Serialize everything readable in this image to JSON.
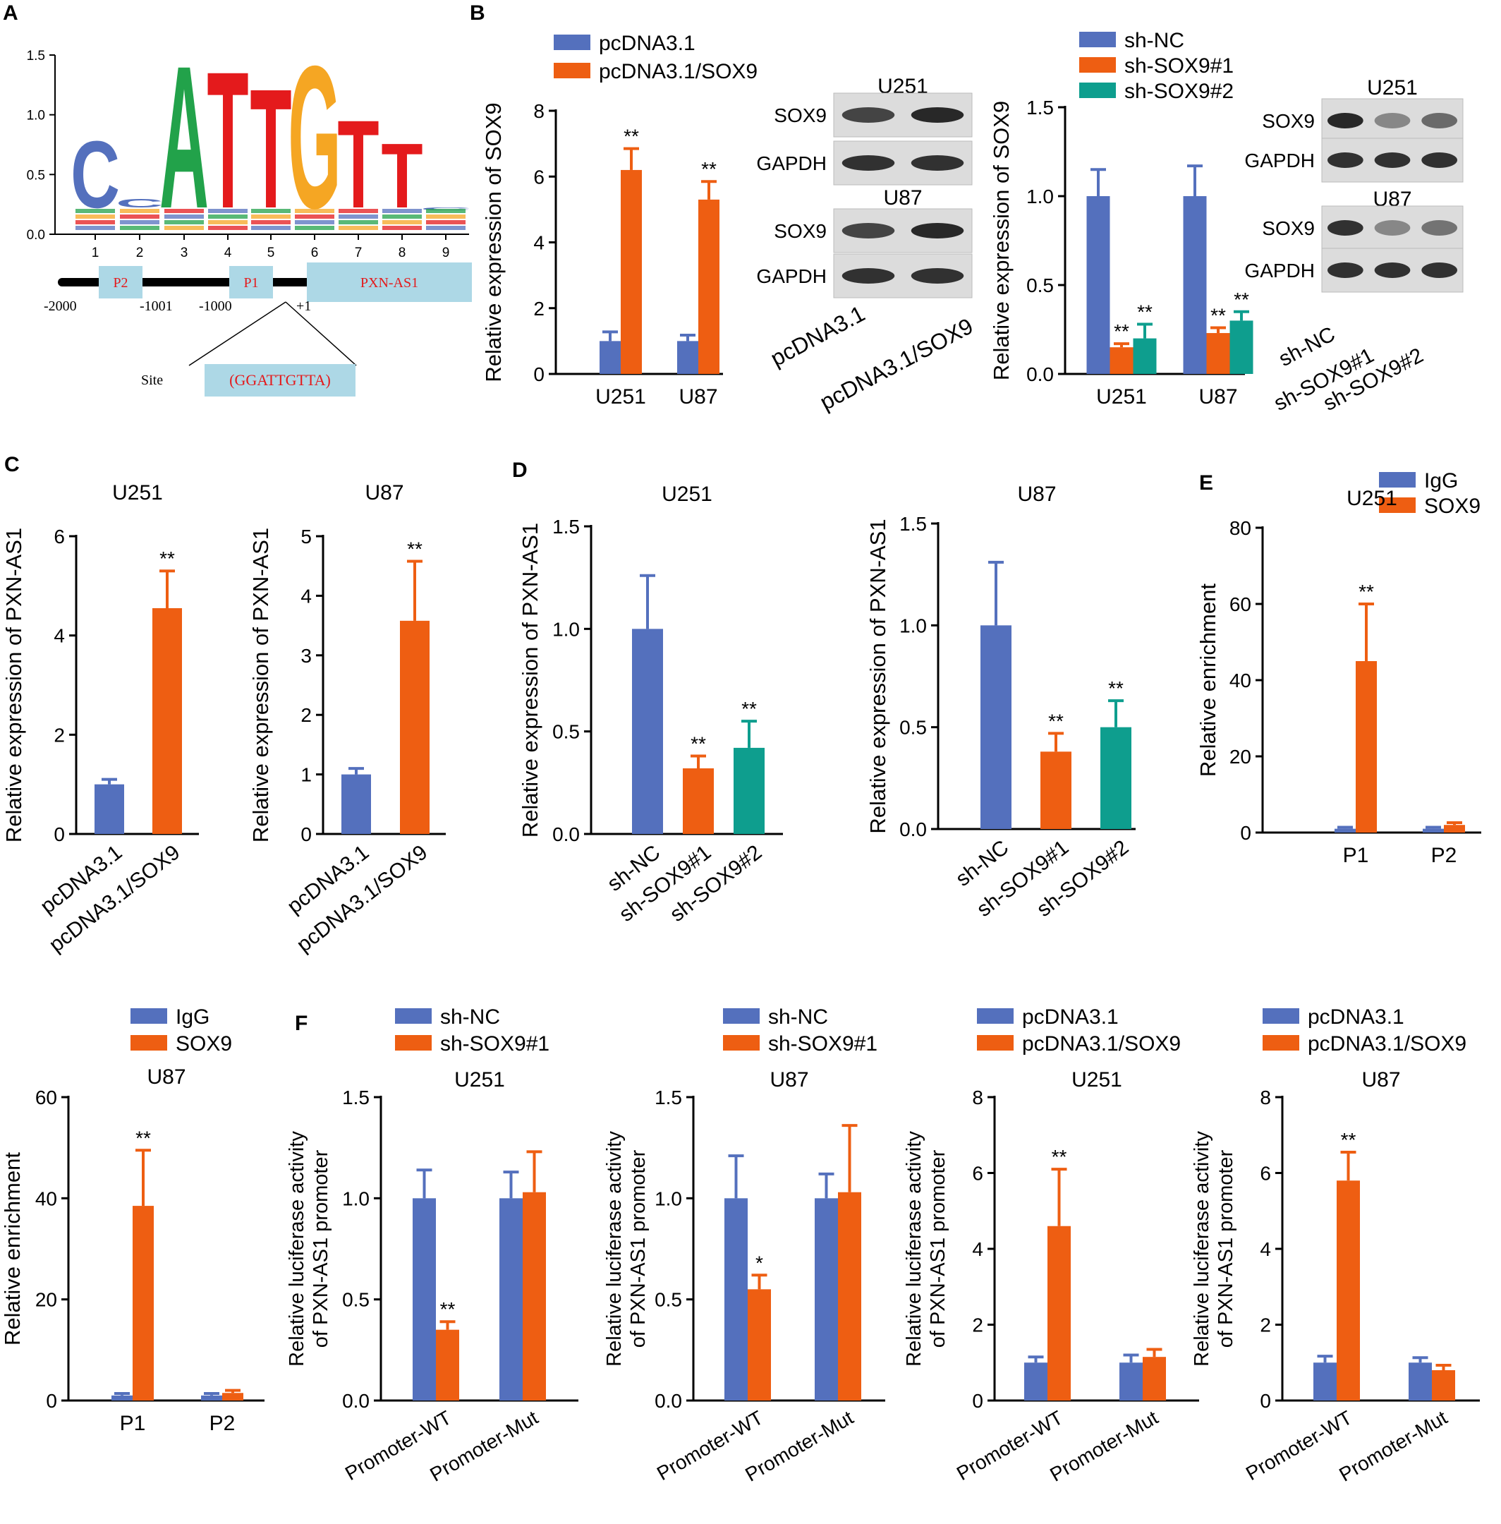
{
  "colors": {
    "blue": "#5470BD",
    "orange": "#EE5E12",
    "teal": "#0E9E8E",
    "red": "#E41A1C",
    "green": "#22A24A",
    "yellow": "#F5A623",
    "boxFill": "#ADD8E6",
    "boxText": "#E41A1C"
  },
  "panel_labels": {
    "A": "A",
    "B": "B",
    "C": "C",
    "D": "D",
    "E": "E",
    "F": "F"
  },
  "legends": {
    "pcDNA": [
      "pcDNA3.1",
      "pcDNA3.1/SOX9"
    ],
    "sh3": [
      "sh-NC",
      "sh-SOX9#1",
      "sh-SOX9#2"
    ],
    "ip": [
      "IgG",
      "SOX9"
    ],
    "sh2": [
      "sh-NC",
      "sh-SOX9#1"
    ]
  },
  "logo": {
    "yticks": [
      "0.0",
      "0.5",
      "1.0",
      "1.5"
    ],
    "xticks": [
      "1",
      "2",
      "3",
      "4",
      "5",
      "6",
      "7",
      "8",
      "9"
    ],
    "letters": [
      "C",
      "C",
      "A",
      "T",
      "T",
      "G",
      "T",
      "T",
      "C"
    ],
    "boxes": [
      "P2",
      "P1",
      "PXN-AS1"
    ],
    "coords": [
      "-2000",
      "-1001",
      "-1000",
      "+1"
    ],
    "site_label": "Site",
    "site_seq": "(GGATTGTTA)"
  },
  "blots": {
    "b1": {
      "top_cell": "U251",
      "bottom_cell": "U87",
      "rows": [
        "SOX9",
        "GAPDH",
        "SOX9",
        "GAPDH"
      ],
      "lanes": [
        "pcDNA3.1",
        "pcDNA3.1/SOX9"
      ]
    },
    "b2": {
      "top_cell": "U251",
      "bottom_cell": "U87",
      "rows": [
        "SOX9",
        "GAPDH",
        "SOX9",
        "GAPDH"
      ],
      "lanes": [
        "sh-NC",
        "sh-SOX9#1",
        "sh-SOX9#2"
      ]
    }
  },
  "chart_data": [
    {
      "id": "B1",
      "type": "bar",
      "title": "",
      "ylabel": "Relative expression of SOX9",
      "ylim": [
        0,
        8
      ],
      "yticks": [
        "0",
        "2",
        "4",
        "6",
        "8"
      ],
      "categories": [
        "U251",
        "U87"
      ],
      "legend": "pcDNA",
      "series": [
        {
          "name": "pcDNA3.1",
          "values": [
            1.0,
            1.0
          ],
          "err": [
            0.28,
            0.18
          ]
        },
        {
          "name": "pcDNA3.1/SOX9",
          "values": [
            6.2,
            5.3
          ],
          "err": [
            0.65,
            0.55
          ]
        }
      ],
      "annotations": [
        {
          "cat": 0,
          "series": 1,
          "text": "**"
        },
        {
          "cat": 1,
          "series": 1,
          "text": "**"
        }
      ]
    },
    {
      "id": "B2",
      "type": "bar",
      "title": "",
      "ylabel": "Relative expression of SOX9",
      "ylim": [
        0,
        1.5
      ],
      "yticks": [
        "0.0",
        "0.5",
        "1.0",
        "1.5"
      ],
      "categories": [
        "U251",
        "U87"
      ],
      "legend": "sh3",
      "series": [
        {
          "name": "sh-NC",
          "values": [
            1.0,
            1.0
          ],
          "err": [
            0.15,
            0.17
          ]
        },
        {
          "name": "sh-SOX9#1",
          "values": [
            0.15,
            0.23
          ],
          "err": [
            0.02,
            0.03
          ]
        },
        {
          "name": "sh-SOX9#2",
          "values": [
            0.2,
            0.3
          ],
          "err": [
            0.08,
            0.05
          ]
        }
      ],
      "annotations": [
        {
          "cat": 0,
          "series": 1,
          "text": "**"
        },
        {
          "cat": 0,
          "series": 2,
          "text": "**"
        },
        {
          "cat": 1,
          "series": 1,
          "text": "**"
        },
        {
          "cat": 1,
          "series": 2,
          "text": "**"
        }
      ]
    },
    {
      "id": "C1",
      "type": "bar",
      "title": "U251",
      "ylabel": "Relative expression of PXN-AS1",
      "ylim": [
        0,
        6
      ],
      "yticks": [
        "0",
        "2",
        "4",
        "6"
      ],
      "categories": [
        "pcDNA3.1",
        "pcDNA3.1/SOX9"
      ],
      "rotate": true,
      "values": [
        1.0,
        4.55
      ],
      "err": [
        0.1,
        0.75
      ],
      "barColors": [
        "blue",
        "orange"
      ],
      "annotations": [
        {
          "cat": 1,
          "text": "**"
        }
      ]
    },
    {
      "id": "C2",
      "type": "bar",
      "title": "U87",
      "ylabel": "Relative expression of PXN-AS1",
      "ylim": [
        0,
        5
      ],
      "yticks": [
        "0",
        "1",
        "2",
        "3",
        "4",
        "5"
      ],
      "categories": [
        "pcDNA3.1",
        "pcDNA3.1/SOX9"
      ],
      "rotate": true,
      "values": [
        1.0,
        3.58
      ],
      "err": [
        0.1,
        1.0
      ],
      "barColors": [
        "blue",
        "orange"
      ],
      "annotations": [
        {
          "cat": 1,
          "text": "**"
        }
      ]
    },
    {
      "id": "D1",
      "type": "bar",
      "title": "U251",
      "ylabel": "Relative expression of PXN-AS1",
      "ylim": [
        0,
        1.5
      ],
      "yticks": [
        "0.0",
        "0.5",
        "1.0",
        "1.5"
      ],
      "categories": [
        "sh-NC",
        "sh-SOX9#1",
        "sh-SOX9#2"
      ],
      "rotate": true,
      "values": [
        1.0,
        0.32,
        0.42
      ],
      "err": [
        0.26,
        0.06,
        0.13
      ],
      "barColors": [
        "blue",
        "orange",
        "teal"
      ],
      "annotations": [
        {
          "cat": 1,
          "text": "**"
        },
        {
          "cat": 2,
          "text": "**"
        }
      ]
    },
    {
      "id": "D2",
      "type": "bar",
      "title": "U87",
      "ylabel": "Relative expression of PXN-AS1",
      "ylim": [
        0,
        1.5
      ],
      "yticks": [
        "0.0",
        "0.5",
        "1.0",
        "1.5"
      ],
      "categories": [
        "sh-NC",
        "sh-SOX9#1",
        "sh-SOX9#2"
      ],
      "rotate": true,
      "values": [
        1.0,
        0.38,
        0.5
      ],
      "err": [
        0.31,
        0.09,
        0.13
      ],
      "barColors": [
        "blue",
        "orange",
        "teal"
      ],
      "annotations": [
        {
          "cat": 1,
          "text": "**"
        },
        {
          "cat": 2,
          "text": "**"
        }
      ]
    },
    {
      "id": "E1",
      "type": "bar",
      "title": "U251",
      "ylabel": "Relative enrichment",
      "ylim": [
        0,
        80
      ],
      "yticks": [
        "0",
        "20",
        "40",
        "60",
        "80"
      ],
      "categories": [
        "P1",
        "P2"
      ],
      "legend": "ip",
      "series": [
        {
          "name": "IgG",
          "values": [
            1.0,
            1.0
          ],
          "err": [
            0.4,
            0.4
          ]
        },
        {
          "name": "SOX9",
          "values": [
            45,
            2.0
          ],
          "err": [
            15,
            0.6
          ]
        }
      ],
      "annotations": [
        {
          "cat": 0,
          "series": 1,
          "text": "**"
        }
      ]
    },
    {
      "id": "E2",
      "type": "bar",
      "title": "U87",
      "ylabel": "Relative enrichment",
      "ylim": [
        0,
        60
      ],
      "yticks": [
        "0",
        "20",
        "40",
        "60"
      ],
      "categories": [
        "P1",
        "P2"
      ],
      "legend": "ip",
      "series": [
        {
          "name": "IgG",
          "values": [
            1.0,
            1.0
          ],
          "err": [
            0.4,
            0.4
          ]
        },
        {
          "name": "SOX9",
          "values": [
            38.5,
            1.5
          ],
          "err": [
            11,
            0.5
          ]
        }
      ],
      "annotations": [
        {
          "cat": 0,
          "series": 1,
          "text": "**"
        }
      ]
    },
    {
      "id": "F1",
      "type": "bar",
      "title": "U251",
      "ylabel": [
        "Relative luciferase activity",
        "of PXN-AS1 promoter"
      ],
      "ylim": [
        0,
        1.5
      ],
      "yticks": [
        "0.0",
        "0.5",
        "1.0",
        "1.5"
      ],
      "categories": [
        "Promoter-WT",
        "Promoter-Mut"
      ],
      "legend": "sh2",
      "rotate": true,
      "series": [
        {
          "name": "sh-NC",
          "values": [
            1.0,
            1.0
          ],
          "err": [
            0.14,
            0.13
          ]
        },
        {
          "name": "sh-SOX9#1",
          "values": [
            0.35,
            1.03
          ],
          "err": [
            0.04,
            0.2
          ]
        }
      ],
      "annotations": [
        {
          "cat": 0,
          "series": 1,
          "text": "**"
        }
      ]
    },
    {
      "id": "F2",
      "type": "bar",
      "title": "U87",
      "ylabel": [
        "Relative luciferase activity",
        "of PXN-AS1 promoter"
      ],
      "ylim": [
        0,
        1.5
      ],
      "yticks": [
        "0.0",
        "0.5",
        "1.0",
        "1.5"
      ],
      "categories": [
        "Promoter-WT",
        "Promoter-Mut"
      ],
      "legend": "sh2",
      "rotate": true,
      "series": [
        {
          "name": "sh-NC",
          "values": [
            1.0,
            1.0
          ],
          "err": [
            0.21,
            0.12
          ]
        },
        {
          "name": "sh-SOX9#1",
          "values": [
            0.55,
            1.03
          ],
          "err": [
            0.07,
            0.33
          ]
        }
      ],
      "annotations": [
        {
          "cat": 0,
          "series": 1,
          "text": "*"
        }
      ]
    },
    {
      "id": "F3",
      "type": "bar",
      "title": "U251",
      "ylabel": [
        "Relative luciferase activity",
        "of PXN-AS1 promoter"
      ],
      "ylim": [
        0,
        8
      ],
      "yticks": [
        "0",
        "2",
        "4",
        "6",
        "8"
      ],
      "categories": [
        "Promoter-WT",
        "Promoter-Mut"
      ],
      "legend": "pcDNA",
      "rotate": true,
      "series": [
        {
          "name": "pcDNA3.1",
          "values": [
            1.0,
            1.0
          ],
          "err": [
            0.15,
            0.2
          ]
        },
        {
          "name": "pcDNA3.1/SOX9",
          "values": [
            4.6,
            1.15
          ],
          "err": [
            1.5,
            0.2
          ]
        }
      ],
      "annotations": [
        {
          "cat": 0,
          "series": 1,
          "text": "**"
        }
      ]
    },
    {
      "id": "F4",
      "type": "bar",
      "title": "U87",
      "ylabel": [
        "Relative luciferase activity",
        "of PXN-AS1 promoter"
      ],
      "ylim": [
        0,
        8
      ],
      "yticks": [
        "0",
        "2",
        "4",
        "6",
        "8"
      ],
      "categories": [
        "Promoter-WT",
        "Promoter-Mut"
      ],
      "legend": "pcDNA",
      "rotate": true,
      "series": [
        {
          "name": "pcDNA3.1",
          "values": [
            1.0,
            1.0
          ],
          "err": [
            0.17,
            0.13
          ]
        },
        {
          "name": "pcDNA3.1/SOX9",
          "values": [
            5.8,
            0.8
          ],
          "err": [
            0.75,
            0.13
          ]
        }
      ],
      "annotations": [
        {
          "cat": 0,
          "series": 1,
          "text": "**"
        }
      ]
    }
  ]
}
